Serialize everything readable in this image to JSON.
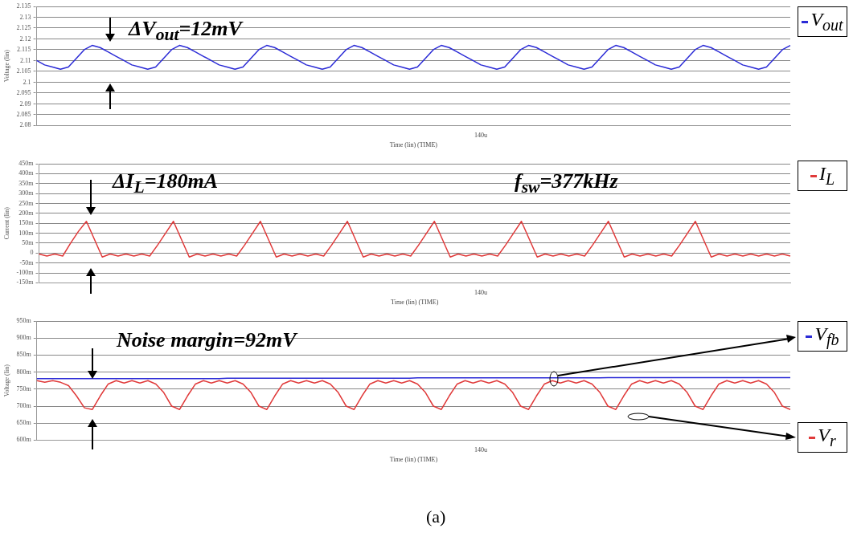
{
  "chart_data": [
    {
      "type": "line",
      "xlabel": "Time (lin) (TIME)",
      "ylabel": "Voltage (lin)",
      "legend": "right",
      "grid": "y",
      "ylim": [
        2.08,
        2.135
      ],
      "yticks": [
        2.08,
        2.085,
        2.09,
        2.095,
        2.1,
        2.105,
        2.11,
        2.115,
        2.12,
        2.125,
        2.13,
        2.135
      ],
      "annotations": [
        "ΔV$_{out}$=12mV",
        "140u"
      ],
      "categories": [
        null,
        null,
        null,
        null,
        null,
        null,
        null,
        null,
        null,
        null,
        null,
        null,
        null,
        null,
        null,
        null,
        null,
        null,
        null,
        null,
        null,
        null,
        null,
        null,
        null,
        null,
        null,
        null,
        null,
        null,
        null,
        null,
        null,
        null,
        null,
        null,
        null,
        null,
        null,
        null,
        null,
        null,
        null,
        null,
        null,
        null,
        null,
        null,
        null,
        null,
        null,
        null,
        null,
        null,
        null,
        null,
        null,
        null,
        null,
        null,
        null,
        null,
        null,
        null,
        null,
        null,
        null,
        null,
        null,
        null,
        null,
        null,
        null,
        null,
        null,
        null,
        null,
        null,
        null,
        null,
        null,
        null,
        null,
        null,
        null,
        null,
        null,
        null,
        null,
        null,
        null,
        null,
        null,
        null,
        null,
        null
      ],
      "series": [
        {
          "name": "V$_{out}$",
          "color": "#2b2bd6",
          "values": [
            2.11,
            2.108,
            2.107,
            2.106,
            2.107,
            2.111,
            2.115,
            2.117,
            2.116,
            2.114,
            2.112,
            2.11,
            2.108,
            2.107,
            2.106,
            2.107,
            2.111,
            2.115,
            2.117,
            2.116,
            2.114,
            2.112,
            2.11,
            2.108,
            2.107,
            2.106,
            2.107,
            2.111,
            2.115,
            2.117,
            2.116,
            2.114,
            2.112,
            2.11,
            2.108,
            2.107,
            2.106,
            2.107,
            2.111,
            2.115,
            2.117,
            2.116,
            2.114,
            2.112,
            2.11,
            2.108,
            2.107,
            2.106,
            2.107,
            2.111,
            2.115,
            2.117,
            2.116,
            2.114,
            2.112,
            2.11,
            2.108,
            2.107,
            2.106,
            2.107,
            2.111,
            2.115,
            2.117,
            2.116,
            2.114,
            2.112,
            2.11,
            2.108,
            2.107,
            2.106,
            2.107,
            2.111,
            2.115,
            2.117,
            2.116,
            2.114,
            2.112,
            2.11,
            2.108,
            2.107,
            2.106,
            2.107,
            2.111,
            2.115,
            2.117,
            2.116,
            2.114,
            2.112,
            2.11,
            2.108,
            2.107,
            2.106,
            2.107,
            2.111,
            2.115,
            2.117
          ]
        }
      ]
    },
    {
      "type": "line",
      "xlabel": "Time (lin) (TIME)",
      "ylabel": "Current (lin)",
      "legend": "right",
      "grid": "y",
      "ylim": [
        -150,
        450
      ],
      "yticks": [
        {
          "value": -150,
          "label": "-150m"
        },
        {
          "value": -100,
          "label": "-100m"
        },
        {
          "value": -50,
          "label": "-50m"
        },
        0,
        {
          "value": 50,
          "label": "50m"
        },
        {
          "value": 100,
          "label": "100m"
        },
        {
          "value": 150,
          "label": "150m"
        },
        {
          "value": 200,
          "label": "200m"
        },
        {
          "value": 250,
          "label": "250m"
        },
        {
          "value": 300,
          "label": "300m"
        },
        {
          "value": 350,
          "label": "350m"
        },
        {
          "value": 400,
          "label": "400m"
        },
        {
          "value": 450,
          "label": "450m"
        }
      ],
      "annotations": [
        "ΔI$_{L}$=180mA",
        "f$_{sw}$=377kHz",
        "140u"
      ],
      "categories": [
        null,
        null,
        null,
        null,
        null,
        null,
        null,
        null,
        null,
        null,
        null,
        null,
        null,
        null,
        null,
        null,
        null,
        null,
        null,
        null,
        null,
        null,
        null,
        null,
        null,
        null,
        null,
        null,
        null,
        null,
        null,
        null,
        null,
        null,
        null,
        null,
        null,
        null,
        null,
        null,
        null,
        null,
        null,
        null,
        null,
        null,
        null,
        null,
        null,
        null,
        null,
        null,
        null,
        null,
        null,
        null,
        null,
        null,
        null,
        null,
        null,
        null,
        null,
        null,
        null,
        null,
        null,
        null,
        null,
        null,
        null,
        null,
        null,
        null,
        null,
        null,
        null,
        null,
        null,
        null,
        null,
        null,
        null,
        null,
        null,
        null,
        null,
        null,
        null,
        null,
        null,
        null,
        null,
        null,
        null,
        null
      ],
      "series": [
        {
          "name": "I$_{L}$",
          "color": "#e03a3a",
          "values": [
            -5,
            -15,
            -5,
            -15,
            50,
            110,
            160,
            70,
            -20,
            -5,
            -15,
            -5,
            -15,
            -5,
            -15,
            40,
            100,
            160,
            70,
            -20,
            -5,
            -15,
            -5,
            -15,
            -5,
            -15,
            40,
            100,
            160,
            70,
            -20,
            -5,
            -15,
            -5,
            -15,
            -5,
            -15,
            40,
            100,
            160,
            70,
            -20,
            -5,
            -15,
            -5,
            -15,
            -5,
            -15,
            40,
            100,
            160,
            70,
            -20,
            -5,
            -15,
            -5,
            -15,
            -5,
            -15,
            40,
            100,
            160,
            70,
            -20,
            -5,
            -15,
            -5,
            -15,
            -5,
            -15,
            40,
            100,
            160,
            70,
            -20,
            -5,
            -15,
            -5,
            -15,
            -5,
            -15,
            40,
            100,
            160,
            70,
            -20,
            -5,
            -15,
            -5,
            -15,
            -5,
            -15,
            -5,
            -15,
            -5,
            -15
          ]
        }
      ]
    },
    {
      "type": "line",
      "xlabel": "Time (lin) (TIME)",
      "ylabel": "Voltage (lin)",
      "legend": "right",
      "grid": "y",
      "ylim": [
        600,
        950
      ],
      "yticks": [
        {
          "value": 600,
          "label": "600m"
        },
        {
          "value": 650,
          "label": "650m"
        },
        {
          "value": 700,
          "label": "700m"
        },
        {
          "value": 750,
          "label": "750m"
        },
        {
          "value": 800,
          "label": "800m"
        },
        {
          "value": 850,
          "label": "850m"
        },
        {
          "value": 900,
          "label": "900m"
        },
        {
          "value": 950,
          "label": "950m"
        }
      ],
      "annotations": [
        "Noise margin=92mV",
        "140u",
        "(a)"
      ],
      "categories": [
        null,
        null,
        null,
        null,
        null,
        null,
        null,
        null,
        null,
        null,
        null,
        null,
        null,
        null,
        null,
        null,
        null,
        null,
        null,
        null,
        null,
        null,
        null,
        null,
        null,
        null,
        null,
        null,
        null,
        null,
        null,
        null,
        null,
        null,
        null,
        null,
        null,
        null,
        null,
        null,
        null,
        null,
        null,
        null,
        null,
        null,
        null,
        null,
        null,
        null,
        null,
        null,
        null,
        null,
        null,
        null,
        null,
        null,
        null,
        null,
        null,
        null,
        null,
        null,
        null,
        null,
        null,
        null,
        null,
        null,
        null,
        null,
        null,
        null,
        null,
        null,
        null,
        null,
        null,
        null,
        null,
        null,
        null,
        null,
        null,
        null,
        null,
        null,
        null,
        null,
        null,
        null,
        null,
        null,
        null,
        null
      ],
      "series": [
        {
          "name": "V$_{fb}$",
          "color": "#2b2bd6",
          "values": [
            781,
            781,
            781,
            781,
            781,
            781,
            781,
            781,
            781,
            781,
            781,
            781,
            781,
            781,
            781,
            781,
            781,
            781,
            781,
            781,
            781,
            781,
            781,
            781,
            782,
            782,
            782,
            782,
            782,
            782,
            782,
            782,
            782,
            782,
            782,
            782,
            782,
            782,
            782,
            782,
            782,
            782,
            782,
            782,
            782,
            782,
            782,
            782,
            783,
            783,
            783,
            783,
            783,
            783,
            783,
            783,
            783,
            783,
            783,
            783,
            783,
            783,
            783,
            783,
            783,
            783,
            783,
            783,
            783,
            783,
            783,
            783,
            784,
            784,
            784,
            784,
            784,
            784,
            784,
            784,
            784,
            784,
            784,
            784,
            784,
            784,
            784,
            784,
            784,
            784,
            784,
            784,
            784,
            784,
            784,
            784
          ]
        },
        {
          "name": "V$_{r}$",
          "color": "#e03a3a",
          "values": [
            775,
            770,
            775,
            770,
            760,
            730,
            695,
            690,
            730,
            765,
            775,
            768,
            775,
            768,
            775,
            765,
            740,
            700,
            690,
            730,
            765,
            775,
            768,
            775,
            768,
            775,
            765,
            740,
            700,
            690,
            730,
            765,
            775,
            768,
            775,
            768,
            775,
            765,
            740,
            700,
            690,
            730,
            765,
            775,
            768,
            775,
            768,
            775,
            765,
            740,
            700,
            690,
            730,
            765,
            775,
            768,
            775,
            768,
            775,
            765,
            740,
            700,
            690,
            730,
            765,
            775,
            768,
            775,
            768,
            775,
            765,
            740,
            700,
            690,
            730,
            765,
            775,
            768,
            775,
            768,
            775,
            765,
            740,
            700,
            690,
            730,
            765,
            775,
            768,
            775,
            768,
            775,
            765,
            740,
            700,
            690
          ]
        }
      ]
    }
  ]
}
